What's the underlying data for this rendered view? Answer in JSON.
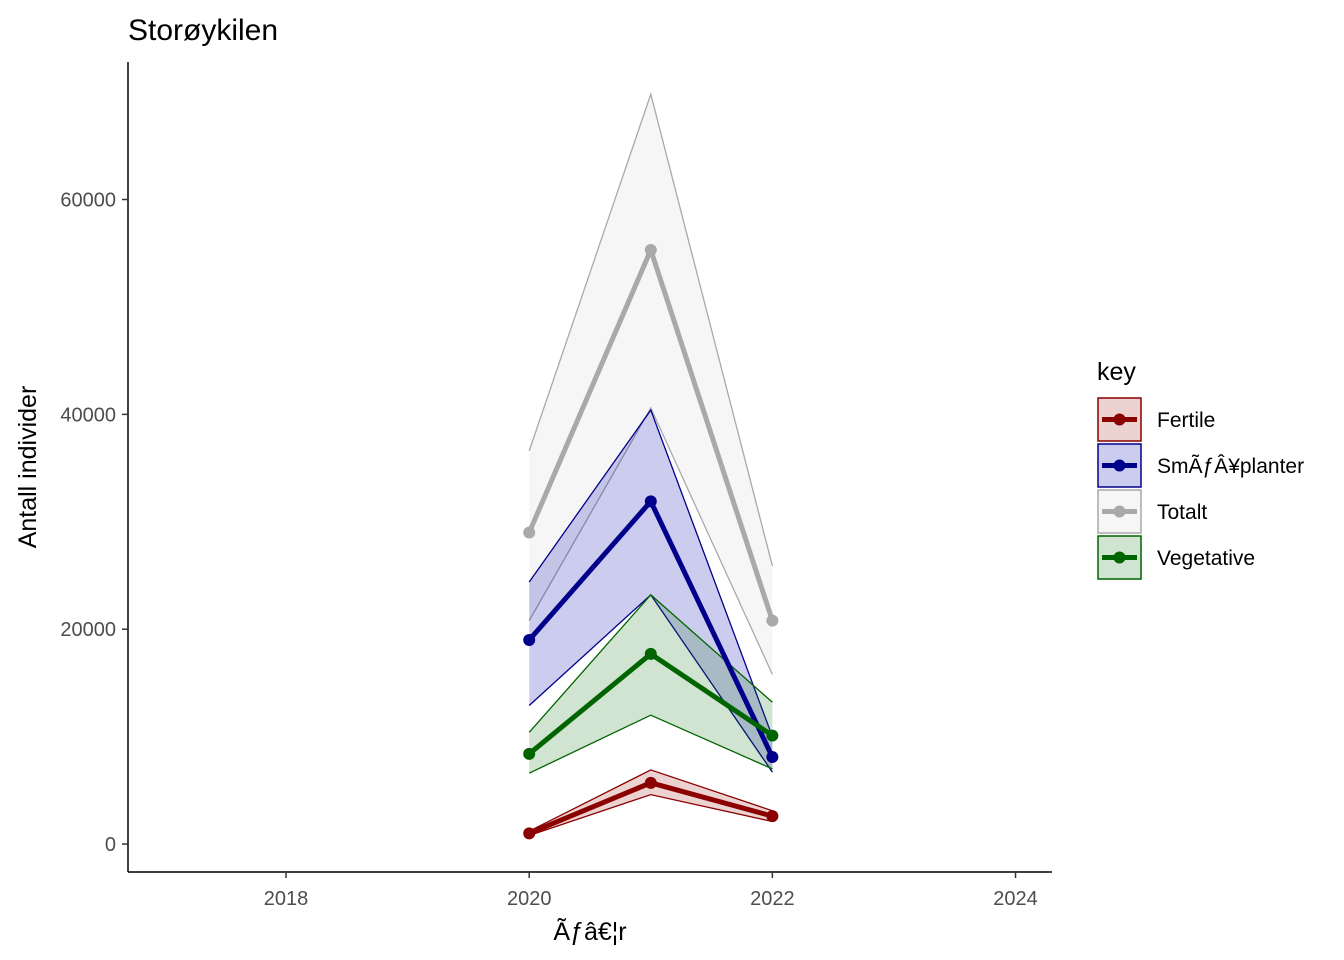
{
  "chart_data": {
    "type": "line",
    "title": "Storøykilen",
    "xlabel": "Ãƒâ€¦r",
    "ylabel": "Antall individer",
    "xlim": [
      2016.7,
      2024.3
    ],
    "ylim": [
      -2600,
      72800
    ],
    "x_ticks": [
      2018,
      2020,
      2022,
      2024
    ],
    "y_ticks": [
      0,
      20000,
      40000,
      60000
    ],
    "x": [
      2020,
      2021,
      2022
    ],
    "legend_title": "key",
    "legend_position": "right",
    "grid": false,
    "series": [
      {
        "name": "Totalt",
        "color": "#a9a9a9",
        "fill": "#d3d3d3",
        "values": [
          29000,
          55300,
          20800
        ],
        "lower": [
          20800,
          40600,
          15800
        ],
        "upper": [
          36600,
          69800,
          25900
        ]
      },
      {
        "name": "SmÃƒÂ¥planter",
        "color": "#00008b",
        "fill": "#0000b0",
        "values": [
          19000,
          31900,
          8100
        ],
        "lower": [
          12900,
          23200,
          6700
        ],
        "upper": [
          24400,
          40400,
          10000
        ]
      },
      {
        "name": "Vegetative",
        "color": "#006400",
        "fill": "#1a7a1a",
        "values": [
          8400,
          17700,
          10100
        ],
        "lower": [
          6600,
          12000,
          7000
        ],
        "upper": [
          10400,
          23200,
          13200
        ]
      },
      {
        "name": "Fertile",
        "color": "#8b0000",
        "fill": "#a52020",
        "values": [
          1000,
          5700,
          2600
        ],
        "lower": [
          800,
          4600,
          2100
        ],
        "upper": [
          1200,
          6900,
          3100
        ]
      }
    ],
    "legend_order": [
      "Fertile",
      "SmÃƒÂ¥planter",
      "Totalt",
      "Vegetative"
    ]
  }
}
